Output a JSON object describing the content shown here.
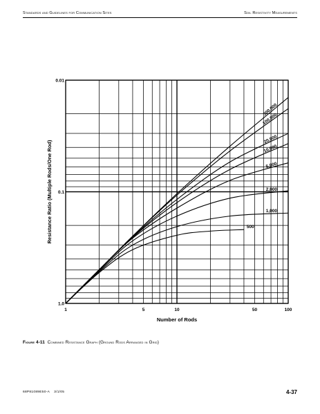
{
  "header": {
    "left": "Standards and Guidelines for Communication Sites",
    "right": "Soil Resistivity Measurements"
  },
  "caption": {
    "number": "Figure 4-11",
    "text": "Combined Resistance Graph (Ground Rods Arranged in Grid)"
  },
  "footer": {
    "doc_id": "68P81089E50-A",
    "date": "3/1/05",
    "page": "4-37"
  },
  "chart_data": {
    "type": "line",
    "title": "",
    "xlabel": "Number of Rods",
    "ylabel": "Resistance Ratio (Multiple Rods/One Rod)",
    "x_scale": "log",
    "y_scale": "log",
    "y_inverted": true,
    "xlim": [
      1,
      100
    ],
    "ylim": [
      1.0,
      0.01
    ],
    "x_ticks": [
      {
        "value": 1,
        "label": "1"
      },
      {
        "value": 5,
        "label": "5"
      },
      {
        "value": 10,
        "label": "10"
      },
      {
        "value": 50,
        "label": "50"
      },
      {
        "value": 100,
        "label": "100"
      }
    ],
    "y_ticks": [
      {
        "value": 0.01,
        "label": "0.01"
      },
      {
        "value": 0.1,
        "label": "0.1"
      },
      {
        "value": 1.0,
        "label": "1.0"
      }
    ],
    "grid": true,
    "series": [
      {
        "name": "300,000",
        "x": [
          1,
          2,
          4,
          10,
          30,
          100
        ],
        "y": [
          1.0,
          0.5,
          0.25,
          0.104,
          0.039,
          0.0143
        ]
      },
      {
        "name": "100,000",
        "x": [
          1,
          2,
          4,
          10,
          30,
          100
        ],
        "y": [
          1.0,
          0.5,
          0.25,
          0.107,
          0.043,
          0.018
        ]
      },
      {
        "name": "20,000",
        "x": [
          1,
          2,
          4,
          10,
          30,
          100
        ],
        "y": [
          1.0,
          0.5,
          0.253,
          0.117,
          0.054,
          0.03
        ]
      },
      {
        "name": "10,000",
        "x": [
          1,
          2,
          4,
          10,
          30,
          100
        ],
        "y": [
          1.0,
          0.5,
          0.256,
          0.125,
          0.063,
          0.037
        ]
      },
      {
        "name": "5,000",
        "x": [
          1,
          2,
          4,
          10,
          30,
          100
        ],
        "y": [
          1.0,
          0.5,
          0.26,
          0.14,
          0.079,
          0.055
        ]
      },
      {
        "name": "2,000",
        "x": [
          1,
          2,
          4,
          10,
          30,
          100
        ],
        "y": [
          1.0,
          0.51,
          0.275,
          0.165,
          0.114,
          0.098
        ]
      },
      {
        "name": "1,000",
        "x": [
          1,
          2,
          4,
          10,
          30,
          100
        ],
        "y": [
          1.0,
          0.52,
          0.3,
          0.205,
          0.165,
          0.155
        ]
      },
      {
        "name": "500",
        "x": [
          1,
          2,
          4,
          10,
          20,
          40
        ],
        "y": [
          1.0,
          0.53,
          0.33,
          0.245,
          0.225,
          0.218
        ]
      }
    ],
    "legend": "none",
    "annotations": "series names printed inline along curves at the right side"
  }
}
